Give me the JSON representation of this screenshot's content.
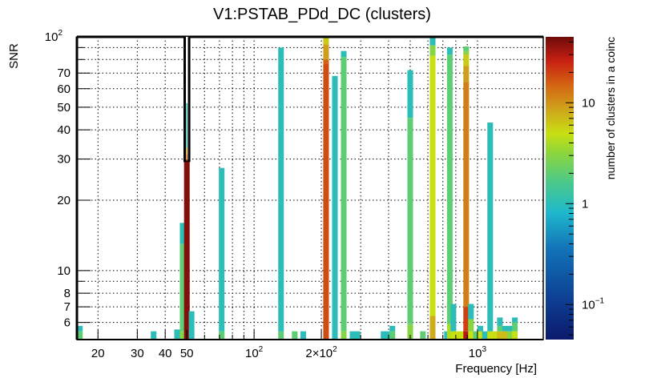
{
  "chart_data": {
    "type": "heatmap",
    "title": "V1:PSTAB_PDd_DC (clusters)",
    "xlabel": "Frequency [Hz]",
    "ylabel": "SNR",
    "zlabel": "number of clusters in a coinc",
    "xscale": "log",
    "yscale": "log",
    "zscale": "log",
    "xlim": [
      16.1,
      1970
    ],
    "ylim": [
      5.07,
      100
    ],
    "zlim": [
      0.045,
      45
    ],
    "grid": true,
    "legend": "colorbar-right",
    "x_ticks": [
      {
        "value": 20,
        "label": "20"
      },
      {
        "value": 30,
        "label": "30"
      },
      {
        "value": 40,
        "label": "40"
      },
      {
        "value": 50,
        "label": "50"
      },
      {
        "value": 100,
        "label": "10",
        "exp": "2"
      },
      {
        "value": 200,
        "label": "2×10",
        "exp": "2"
      },
      {
        "value": 1000,
        "label": "10",
        "exp": "3"
      }
    ],
    "x_minor": [
      60,
      70,
      80,
      90,
      300,
      400,
      500,
      600,
      700,
      800,
      900
    ],
    "y_ticks": [
      {
        "value": 6,
        "label": "6"
      },
      {
        "value": 7,
        "label": "7"
      },
      {
        "value": 8,
        "label": "8"
      },
      {
        "value": 10,
        "label": "10"
      },
      {
        "value": 20,
        "label": "20"
      },
      {
        "value": 30,
        "label": "30"
      },
      {
        "value": 40,
        "label": "40"
      },
      {
        "value": 50,
        "label": "50"
      },
      {
        "value": 60,
        "label": "60"
      },
      {
        "value": 70,
        "label": "70"
      },
      {
        "value": 100,
        "label": "10",
        "exp": "2"
      }
    ],
    "y_minor": [
      9,
      80,
      90
    ],
    "z_ticks": [
      {
        "value": 0.1,
        "label": "10",
        "exp": "−1"
      },
      {
        "value": 1,
        "label": "1"
      },
      {
        "value": 10,
        "label": "10"
      }
    ],
    "bin_width_dex": 0.0253,
    "columns": [
      {
        "f": 16.6,
        "segments": [
          [
            5.07,
            5.5,
            2
          ],
          [
            5.5,
            5.8,
            1
          ]
        ]
      },
      {
        "f": 35.5,
        "segments": [
          [
            5.07,
            5.5,
            1
          ]
        ]
      },
      {
        "f": 45.2,
        "segments": [
          [
            5.07,
            5.6,
            1
          ]
        ]
      },
      {
        "f": 47.9,
        "segments": [
          [
            5.07,
            5.5,
            3
          ],
          [
            5.5,
            13.0,
            2
          ],
          [
            13.0,
            16.0,
            1
          ]
        ]
      },
      {
        "f": 50.0,
        "segments": [
          [
            5.07,
            29.5,
            40
          ],
          [
            29.5,
            31.5,
            15
          ],
          [
            31.5,
            33.5,
            10
          ],
          [
            33.5,
            52,
            1
          ]
        ]
      },
      {
        "f": 52.5,
        "segments": [
          [
            5.07,
            6.7,
            1
          ]
        ]
      },
      {
        "f": 71.6,
        "segments": [
          [
            5.07,
            5.5,
            2
          ],
          [
            5.5,
            27.5,
            1
          ]
        ]
      },
      {
        "f": 132,
        "segments": [
          [
            5.07,
            5.5,
            2
          ],
          [
            5.5,
            90,
            1
          ]
        ]
      },
      {
        "f": 152,
        "segments": [
          [
            5.07,
            5.5,
            2
          ]
        ]
      },
      {
        "f": 166,
        "segments": [
          [
            5.07,
            5.5,
            1
          ]
        ]
      },
      {
        "f": 210,
        "segments": [
          [
            5.07,
            77,
            18
          ],
          [
            77,
            80,
            15
          ],
          [
            80,
            93,
            9
          ],
          [
            93,
            100,
            6
          ]
        ]
      },
      {
        "f": 230,
        "segments": [
          [
            5.07,
            68,
            1
          ]
        ]
      },
      {
        "f": 252,
        "segments": [
          [
            5.07,
            5.5,
            3
          ],
          [
            5.5,
            82,
            2
          ],
          [
            82,
            87,
            1
          ]
        ]
      },
      {
        "f": 276,
        "segments": [
          [
            5.07,
            5.5,
            1
          ]
        ]
      },
      {
        "f": 290,
        "segments": [
          [
            5.07,
            5.5,
            1
          ]
        ]
      },
      {
        "f": 380,
        "segments": [
          [
            5.07,
            5.5,
            1
          ]
        ]
      },
      {
        "f": 398,
        "segments": [
          [
            5.07,
            5.5,
            1
          ]
        ]
      },
      {
        "f": 416,
        "segments": [
          [
            5.07,
            5.5,
            2
          ],
          [
            5.5,
            5.8,
            1
          ]
        ]
      },
      {
        "f": 500,
        "segments": [
          [
            5.07,
            5.9,
            3
          ],
          [
            5.9,
            45,
            2
          ],
          [
            45,
            72,
            1
          ]
        ]
      },
      {
        "f": 570,
        "segments": [
          [
            5.07,
            5.5,
            2
          ]
        ]
      },
      {
        "f": 630,
        "segments": [
          [
            5.07,
            6.4,
            8
          ],
          [
            6.4,
            83,
            5
          ],
          [
            83,
            92,
            3
          ],
          [
            92,
            100,
            1
          ]
        ]
      },
      {
        "f": 730,
        "segments": [
          [
            5.07,
            5.5,
            1
          ]
        ]
      },
      {
        "f": 752,
        "segments": [
          [
            5.07,
            5.9,
            4
          ],
          [
            5.9,
            84,
            2
          ],
          [
            84,
            90,
            1
          ]
        ]
      },
      {
        "f": 780,
        "segments": [
          [
            5.07,
            5.5,
            5
          ],
          [
            5.5,
            7.2,
            1
          ]
        ]
      },
      {
        "f": 815,
        "segments": [
          [
            5.07,
            5.5,
            5
          ]
        ]
      },
      {
        "f": 850,
        "segments": [
          [
            5.07,
            5.5,
            5
          ]
        ]
      },
      {
        "f": 890,
        "segments": [
          [
            5.07,
            5.5,
            30
          ],
          [
            5.5,
            7.0,
            20
          ],
          [
            7.0,
            64,
            12
          ],
          [
            64,
            75,
            9
          ],
          [
            75,
            84,
            6
          ],
          [
            84,
            87,
            3
          ],
          [
            87,
            91,
            2
          ]
        ]
      },
      {
        "f": 935,
        "segments": [
          [
            5.07,
            5.5,
            5
          ],
          [
            5.5,
            6.2,
            3
          ],
          [
            6.2,
            7.2,
            1
          ]
        ]
      },
      {
        "f": 985,
        "segments": [
          [
            5.07,
            5.5,
            2
          ]
        ]
      },
      {
        "f": 1030,
        "segments": [
          [
            5.07,
            5.5,
            5
          ],
          [
            5.5,
            5.8,
            1
          ]
        ]
      },
      {
        "f": 1080,
        "segments": [
          [
            5.07,
            5.5,
            1
          ]
        ]
      },
      {
        "f": 1140,
        "segments": [
          [
            5.07,
            5.5,
            5
          ],
          [
            5.5,
            43,
            1
          ]
        ]
      },
      {
        "f": 1200,
        "segments": [
          [
            5.07,
            5.5,
            5
          ]
        ]
      },
      {
        "f": 1260,
        "segments": [
          [
            5.07,
            5.5,
            7
          ],
          [
            5.5,
            5.8,
            2
          ],
          [
            5.8,
            6.3,
            1
          ]
        ]
      },
      {
        "f": 1330,
        "segments": [
          [
            5.07,
            5.5,
            7
          ],
          [
            5.5,
            5.8,
            1
          ]
        ]
      },
      {
        "f": 1400,
        "segments": [
          [
            5.07,
            5.5,
            3
          ],
          [
            5.5,
            5.8,
            1
          ]
        ]
      },
      {
        "f": 1470,
        "segments": [
          [
            5.07,
            5.5,
            5
          ],
          [
            5.5,
            6.0,
            2
          ],
          [
            6.0,
            6.3,
            1
          ]
        ]
      }
    ]
  }
}
